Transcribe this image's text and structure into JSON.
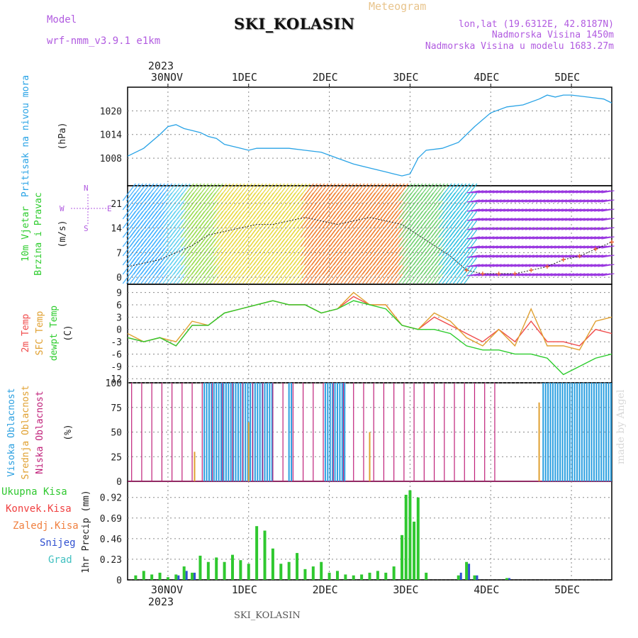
{
  "header": {
    "title": "SKI_KOLASIN",
    "subtitle": "Meteogram",
    "model_label": "Model",
    "model_name": "wrf-nmm_v3.9.1 e1km",
    "location_lines": [
      "lon,lat (19.6312E, 42.8187N)",
      "Nadmorska Visina 1450m",
      "Nadmorska Visina u modelu 1683.27m"
    ],
    "credit": "made by Angel",
    "footer_name": "SKI_KOLASIN"
  },
  "time_axis": {
    "top_year": "2023",
    "bottom_year": "2023",
    "ticks": [
      "30NOV",
      "1DEC",
      "2DEC",
      "3DEC",
      "4DEC",
      "5DEC"
    ],
    "range_days": [
      -0.5,
      5.5
    ]
  },
  "colors": {
    "pressure": "#29a3e6",
    "temp2m": "#f04a4a",
    "sfc_temp": "#e0a030",
    "dewpt": "#2dcc2d",
    "high_cloud": "#2a9fe0",
    "mid_cloud": "#e0a030",
    "low_cloud": "#c0207a",
    "total_precip": "#2fc82f",
    "conv_precip": "#f04040",
    "snow": "#3050d0",
    "grad": "#40c0c0",
    "wind_line": "#1a1a1a",
    "wind_speed_marker": "#f06030"
  },
  "chart_data": [
    {
      "type": "line",
      "panel": "pressure",
      "ylabel_lines": [
        "Pritisak na nivou mora",
        "(hPa)"
      ],
      "yticks": [
        "1008",
        "1014",
        "1020"
      ],
      "ylim": [
        1001,
        1026
      ],
      "series": [
        {
          "values_x": [
            -0.5,
            -0.3,
            -0.1,
            0.0,
            0.1,
            0.2,
            0.3,
            0.4,
            0.5,
            0.6,
            0.7,
            0.8,
            0.9,
            1.0,
            1.1,
            1.3,
            1.5,
            1.7,
            1.9,
            2.1,
            2.3,
            2.5,
            2.6,
            2.7,
            2.8,
            2.9,
            3.0,
            3.1,
            3.2,
            3.4,
            3.6,
            3.8,
            4.0,
            4.2,
            4.4,
            4.6,
            4.7,
            4.8,
            4.9,
            5.0,
            5.2,
            5.4,
            5.5
          ],
          "values_y": [
            1008.5,
            1010.5,
            1014,
            1016,
            1016.5,
            1015.5,
            1015,
            1014.5,
            1013.5,
            1013,
            1011.5,
            1011,
            1010.5,
            1010,
            1010.5,
            1010.5,
            1010.5,
            1010,
            1009.5,
            1008,
            1006.5,
            1005.5,
            1005,
            1004.5,
            1004,
            1003.5,
            1004,
            1008,
            1010,
            1010.5,
            1012,
            1016,
            1019.5,
            1021,
            1021.5,
            1023,
            1024,
            1023.5,
            1024,
            1024,
            1023.5,
            1023,
            1022
          ]
        }
      ]
    },
    {
      "type": "line",
      "panel": "wind",
      "ylabel_lines": [
        "10m Vjetar",
        "Brzina i Pravac",
        "(m/s)"
      ],
      "compass": [
        "N",
        "W",
        "E",
        "S"
      ],
      "yticks": [
        "0",
        "7",
        "14",
        "21"
      ],
      "ylim": [
        -2,
        26
      ],
      "series": [
        {
          "name": "wind speed",
          "values_x": [
            -0.5,
            -0.3,
            -0.1,
            0.1,
            0.3,
            0.5,
            0.7,
            0.9,
            1.1,
            1.3,
            1.5,
            1.7,
            1.9,
            2.1,
            2.3,
            2.5,
            2.7,
            2.9,
            3.1,
            3.3,
            3.5,
            3.7,
            3.9,
            4.1,
            4.3,
            4.5,
            4.7,
            4.9,
            5.1,
            5.3,
            5.5
          ],
          "values_y": [
            3,
            4,
            5,
            7,
            9,
            12,
            13,
            14,
            15,
            15,
            16,
            17,
            16,
            15,
            16,
            17,
            16,
            15,
            12,
            9,
            6,
            2,
            1,
            1,
            1,
            2,
            3,
            5,
            6,
            8,
            10
          ]
        }
      ]
    },
    {
      "type": "line",
      "panel": "temperature",
      "ylabel_lines": [
        "2m Temp",
        "SFC Temp",
        "dewpt Temp",
        "(C)"
      ],
      "yticks": [
        "-12",
        "-9",
        "-6",
        "-3",
        "0",
        "3",
        "6",
        "9"
      ],
      "ylim": [
        -13,
        11
      ],
      "x": [
        -0.5,
        -0.3,
        -0.1,
        0.1,
        0.3,
        0.5,
        0.7,
        0.9,
        1.1,
        1.3,
        1.5,
        1.7,
        1.9,
        2.1,
        2.3,
        2.5,
        2.7,
        2.9,
        3.1,
        3.3,
        3.5,
        3.7,
        3.9,
        4.1,
        4.3,
        4.5,
        4.7,
        4.9,
        5.1,
        5.3,
        5.5
      ],
      "series": [
        {
          "name": "2m Temp",
          "values": [
            -2,
            -3,
            -2,
            -4,
            1,
            1,
            4,
            5,
            6,
            7,
            6,
            6,
            4,
            5,
            8,
            6,
            6,
            1,
            0,
            3,
            1,
            -1,
            -3,
            0,
            -3,
            2,
            -3,
            -3,
            -4,
            0,
            -1
          ]
        },
        {
          "name": "SFC Temp",
          "values": [
            -1,
            -3,
            -2,
            -3,
            2,
            1,
            4,
            5,
            6,
            7,
            6,
            6,
            4,
            5,
            9,
            6,
            6,
            1,
            0,
            4,
            2,
            -2,
            -4,
            0,
            -4,
            5,
            -4,
            -4,
            -5,
            2,
            3
          ]
        },
        {
          "name": "dewpt Temp",
          "values": [
            -2,
            -3,
            -2,
            -4,
            1,
            1,
            4,
            5,
            6,
            7,
            6,
            6,
            4,
            5,
            7,
            6,
            5,
            1,
            0,
            0,
            -1,
            -4,
            -5,
            -5,
            -6,
            -6,
            -7,
            -11,
            -9,
            -7,
            -6
          ]
        }
      ]
    },
    {
      "type": "bar",
      "panel": "cloud",
      "ylabel_lines": [
        "Visoka Oblacnost",
        "Srednja Oblacnost",
        "Niska Oblacnost",
        "(%)"
      ],
      "yticks": [
        "0",
        "25",
        "50",
        "75",
        "100"
      ],
      "ylim": [
        0,
        100
      ],
      "series": [
        {
          "name": "Visoka Oblacnost",
          "ranges": [
            [
              0.45,
              1.3
            ],
            [
              1.5,
              1.55
            ],
            [
              1.95,
              2.2
            ],
            [
              4.65,
              5.5
            ]
          ],
          "value": 100
        },
        {
          "name": "Srednja Oblacnost",
          "points": [
            [
              0.33,
              30
            ],
            [
              1.0,
              60
            ],
            [
              2.5,
              50
            ],
            [
              4.6,
              80
            ]
          ]
        },
        {
          "name": "Niska Oblacnost",
          "spacing": 0.125,
          "from": -0.45,
          "to": 4.1,
          "value": 100
        }
      ]
    },
    {
      "type": "bar",
      "panel": "precip",
      "ylabel_lines": [
        "1hr Precip (mm)"
      ],
      "legend": [
        "Ukupna Kisa",
        "Konvek.Kisa",
        "Zaledj.Kisa",
        "Snijeg",
        "Grad"
      ],
      "yticks": [
        "0",
        "0.23",
        "0.46",
        "0.69",
        "0.92"
      ],
      "ylim": [
        0,
        1.1
      ],
      "x": [
        -0.4,
        -0.3,
        -0.2,
        -0.1,
        0.0,
        0.1,
        0.2,
        0.3,
        0.4,
        0.5,
        0.6,
        0.7,
        0.8,
        0.9,
        1.0,
        1.1,
        1.2,
        1.3,
        1.4,
        1.5,
        1.6,
        1.7,
        1.8,
        1.9,
        2.0,
        2.1,
        2.2,
        2.3,
        2.4,
        2.5,
        2.6,
        2.7,
        2.8,
        2.9,
        2.95,
        3.0,
        3.05,
        3.1,
        3.2,
        3.6,
        3.7,
        3.8,
        4.2
      ],
      "series": [
        {
          "name": "Ukupna Kisa",
          "values": [
            0.05,
            0.1,
            0.06,
            0.08,
            0.03,
            0.06,
            0.15,
            0.08,
            0.27,
            0.2,
            0.25,
            0.2,
            0.28,
            0.22,
            0.18,
            0.6,
            0.55,
            0.35,
            0.18,
            0.2,
            0.3,
            0.12,
            0.15,
            0.2,
            0.08,
            0.1,
            0.06,
            0.05,
            0.06,
            0.08,
            0.1,
            0.08,
            0.15,
            0.5,
            0.95,
            1.0,
            0.65,
            0.92,
            0.08,
            0.05,
            0.2,
            0.05,
            0.02
          ]
        },
        {
          "name": "Snijeg",
          "values": [
            0,
            0,
            0,
            0,
            0,
            0.05,
            0.1,
            0.08,
            0,
            0,
            0,
            0,
            0,
            0,
            0,
            0,
            0,
            0,
            0,
            0,
            0,
            0,
            0,
            0,
            0,
            0,
            0,
            0,
            0,
            0,
            0,
            0,
            0,
            0,
            0,
            0,
            0,
            0,
            0,
            0.08,
            0.18,
            0.05,
            0.02
          ]
        }
      ]
    }
  ]
}
